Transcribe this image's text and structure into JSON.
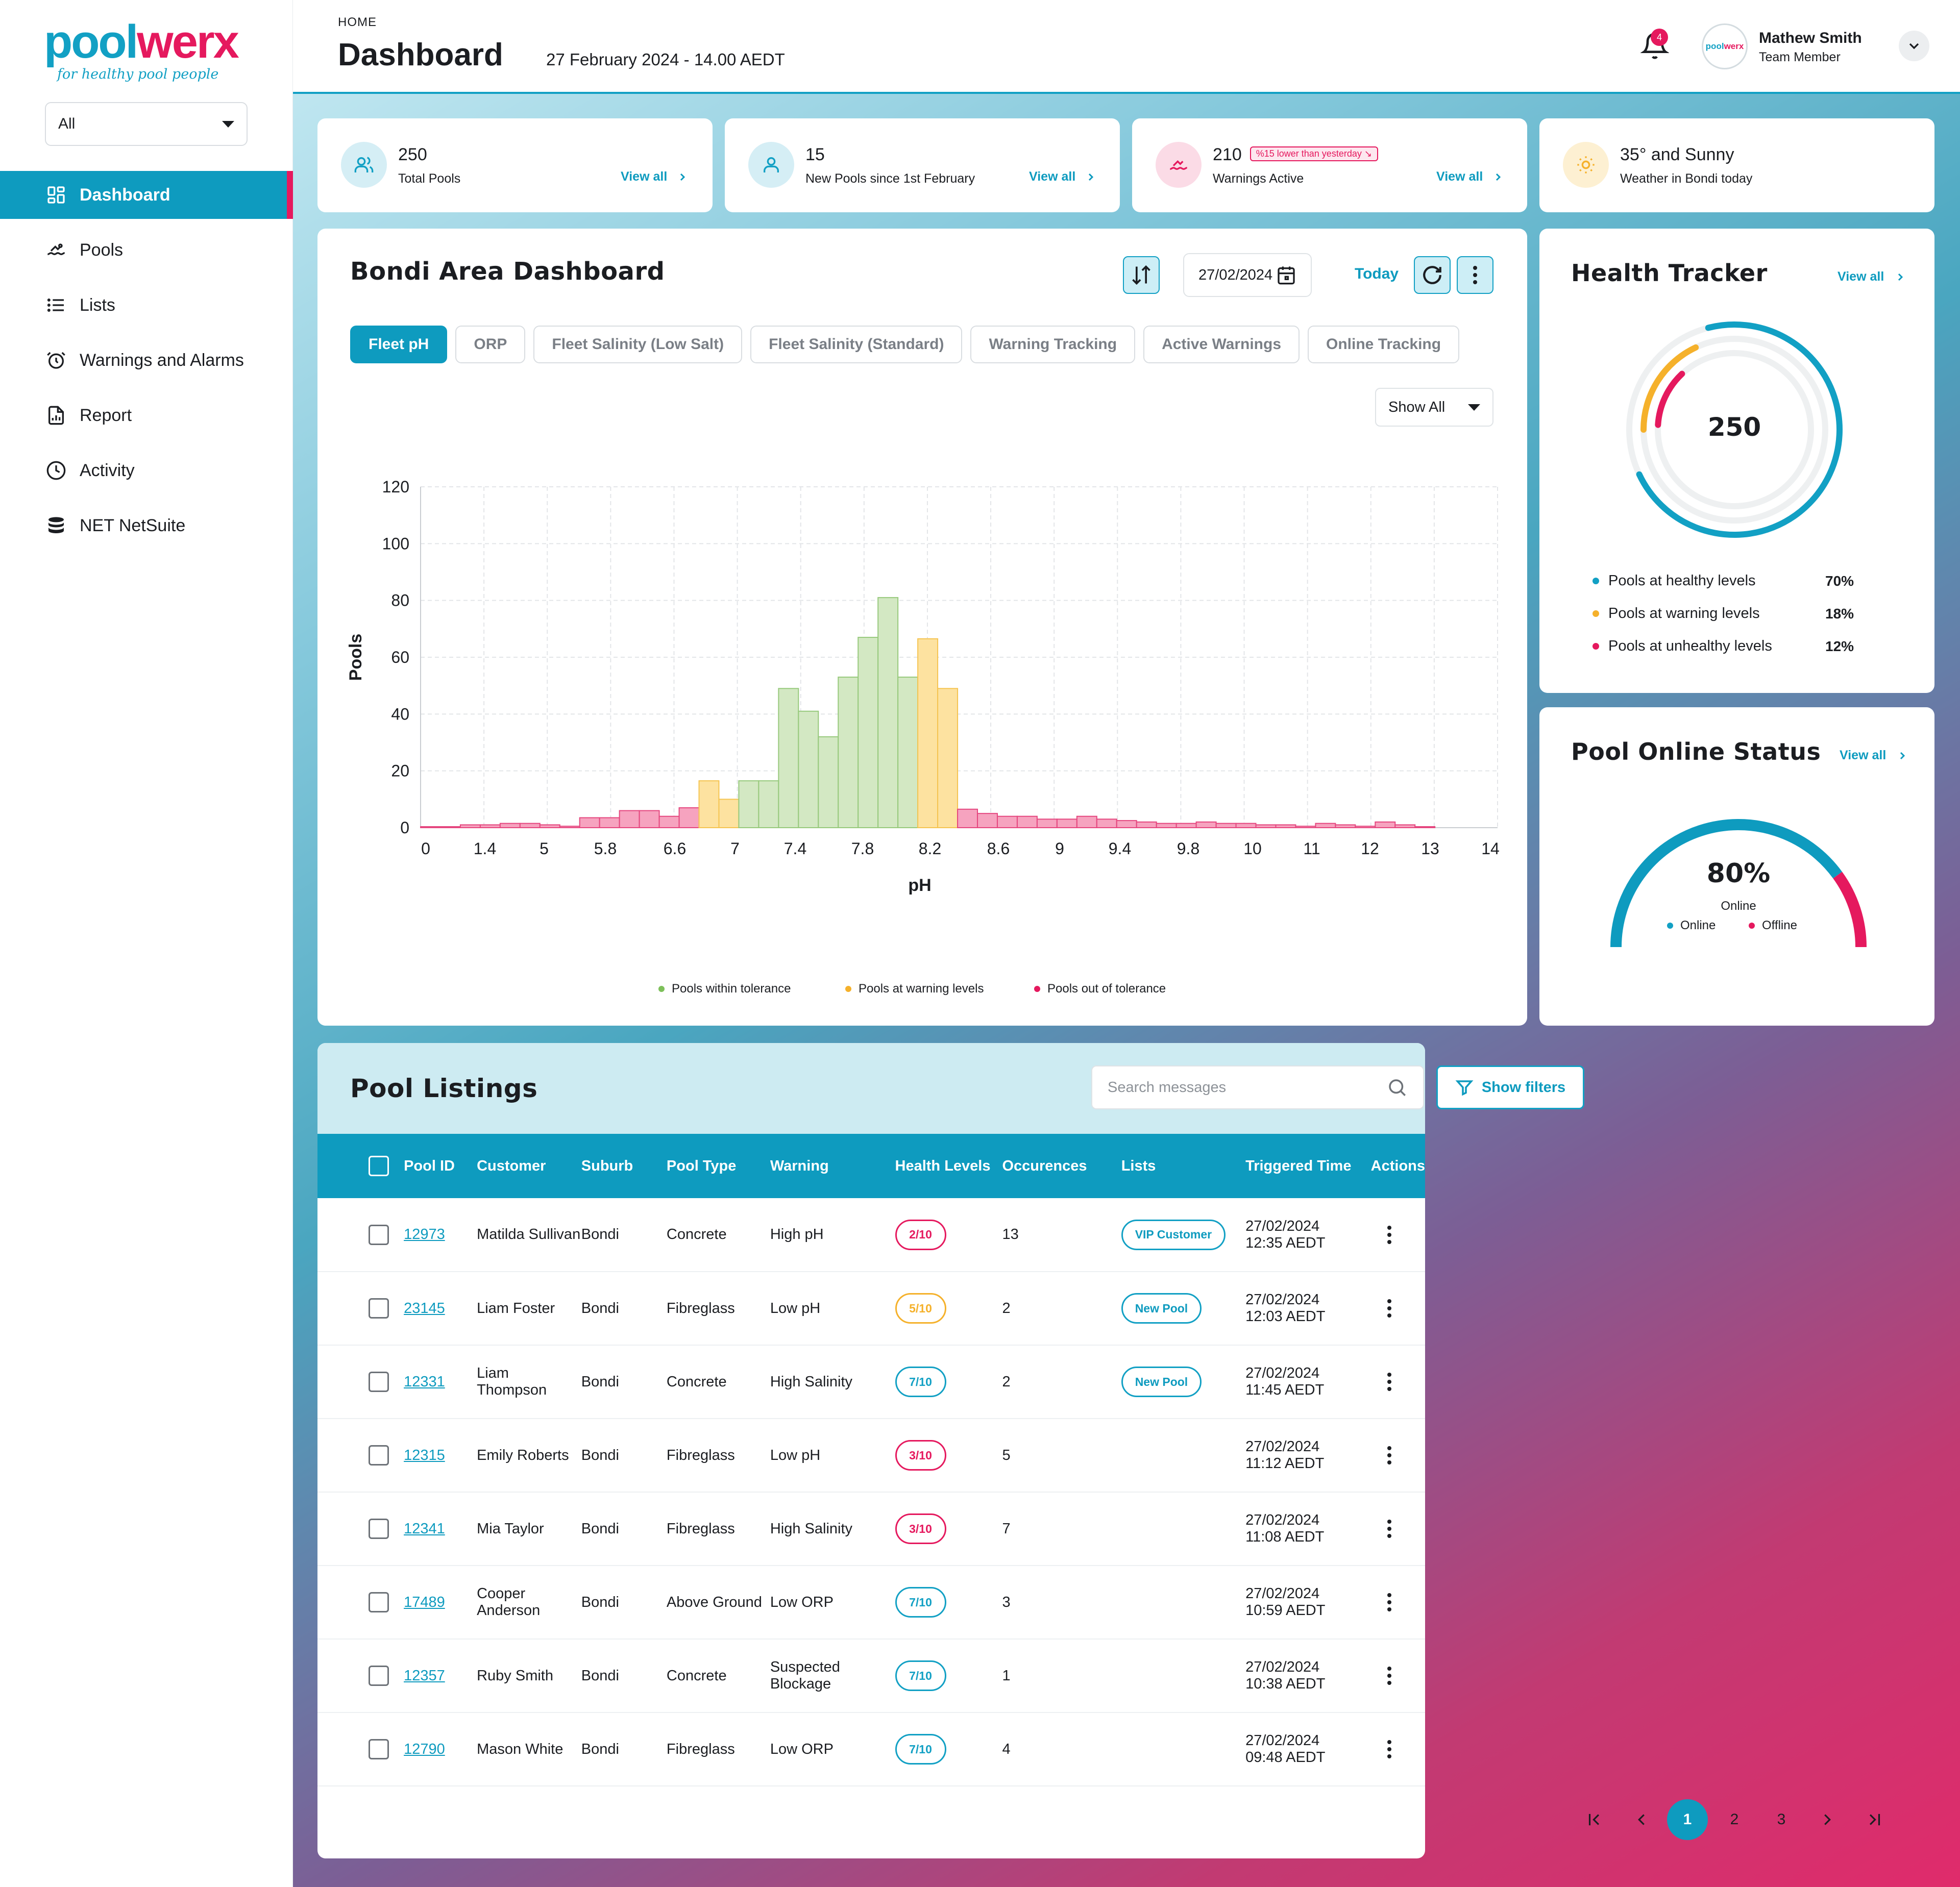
{
  "brand": {
    "logo_part1": "pool",
    "logo_part2": "werx",
    "tagline": "for healthy pool people",
    "accent": "#0e9bbf",
    "alert": "#e5195e"
  },
  "filter_select": {
    "value": "All"
  },
  "sidebar": {
    "items": [
      {
        "label": "Dashboard",
        "icon": "dashboard-icon"
      },
      {
        "label": "Pools",
        "icon": "swimmer-icon"
      },
      {
        "label": "Lists",
        "icon": "list-icon"
      },
      {
        "label": "Warnings and Alarms",
        "icon": "alarm-clock-icon"
      },
      {
        "label": "Report",
        "icon": "report-icon"
      },
      {
        "label": "Activity",
        "icon": "clock-icon"
      },
      {
        "label": "NET NetSuite",
        "icon": "database-icon"
      }
    ]
  },
  "header": {
    "breadcrumb": "HOME",
    "title": "Dashboard",
    "datetime": "27 February 2024 - 14.00 AEDT",
    "notifications": "4",
    "avatar_part1": "pool",
    "avatar_part2": "werx",
    "user_name": "Mathew Smith",
    "user_role": "Team Member"
  },
  "stats": [
    {
      "value": "250",
      "label": "Total Pools",
      "link": "View all"
    },
    {
      "value": "15",
      "label": "New Pools since 1st February",
      "link": "View all"
    },
    {
      "value": "210",
      "badge": "%15 lower than yesterday ↘",
      "label": "Warnings Active",
      "link": "View all"
    },
    {
      "value": "35° and Sunny",
      "label": "Weather in Bondi today"
    }
  ],
  "dashboard": {
    "title": "Bondi Area Dashboard",
    "date": "27/02/2024",
    "today": "Today",
    "tabs": [
      "Fleet pH",
      "ORP",
      "Fleet Salinity (Low Salt)",
      "Fleet Salinity (Standard)",
      "Warning Tracking",
      "Active Warnings",
      "Online Tracking"
    ],
    "show_select": "Show All"
  },
  "chart_data": {
    "type": "bar",
    "xlabel": "pH",
    "ylabel": "Pools",
    "ylim": [
      0,
      120
    ],
    "y_ticks": [
      0,
      20,
      40,
      60,
      80,
      100,
      120
    ],
    "x_tick_labels": [
      "0",
      "1.4",
      "5",
      "5.8",
      "6.6",
      "7",
      "7.4",
      "7.8",
      "8.2",
      "8.6",
      "9",
      "9.4",
      "9.8",
      "10",
      "11",
      "12",
      "13",
      "14"
    ],
    "bins": 51,
    "values": [
      0,
      0,
      1,
      1,
      1.5,
      1.5,
      1,
      0.5,
      3.5,
      3.5,
      6,
      6,
      4,
      7,
      16.5,
      10,
      16.5,
      16.5,
      49,
      41,
      32,
      53,
      67,
      81,
      53,
      66.5,
      49,
      6.5,
      5,
      4,
      4,
      3,
      3,
      4,
      3,
      2.5,
      2,
      1.5,
      1.5,
      2,
      1.5,
      1.5,
      1,
      1,
      0.5,
      1.5,
      1,
      0.5,
      2,
      1,
      0
    ],
    "status": [
      "out",
      "out",
      "out",
      "out",
      "out",
      "out",
      "out",
      "out",
      "out",
      "out",
      "out",
      "out",
      "out",
      "out",
      "warn",
      "warn",
      "ok",
      "ok",
      "ok",
      "ok",
      "ok",
      "ok",
      "ok",
      "ok",
      "ok",
      "warn",
      "warn",
      "out",
      "out",
      "out",
      "out",
      "out",
      "out",
      "out",
      "out",
      "out",
      "out",
      "out",
      "out",
      "out",
      "out",
      "out",
      "out",
      "out",
      "out",
      "out",
      "out",
      "out",
      "out",
      "out",
      "out"
    ],
    "colors": {
      "ok": "#d3e8c3",
      "ok_stroke": "#97c97c",
      "warn": "#fde2a0",
      "warn_stroke": "#f5c451",
      "out": "#f6a3bf",
      "out_stroke": "#e5477f"
    },
    "legend": [
      "Pools within tolerance",
      "Pools at warning levels",
      "Pools out of tolerance"
    ],
    "legend_colors": [
      "#7dc05a",
      "#f5b12b",
      "#e5195e"
    ],
    "grid": true,
    "legend_position": "bottom-center"
  },
  "health": {
    "title": "Health Tracker",
    "link": "View all",
    "total": "250",
    "rows": [
      {
        "label": "Pools at healthy levels",
        "pct": "70%",
        "color": "#12a0c4"
      },
      {
        "label": "Pools at warning levels",
        "pct": "18%",
        "color": "#f5b12b"
      },
      {
        "label": "Pools at unhealthy levels",
        "pct": "12%",
        "color": "#e5195e"
      }
    ],
    "fractions": [
      0.7,
      0.18,
      0.12
    ]
  },
  "online": {
    "title": "Pool Online Status",
    "link": "View all",
    "value": "80%",
    "sub": "Online",
    "legend_online": "Online",
    "legend_offline": "Offline",
    "fraction": 0.8
  },
  "listings": {
    "title": "Pool Listings",
    "search_placeholder": "Search messages",
    "filters": "Show filters",
    "columns": [
      "Pool ID",
      "Customer",
      "Suburb",
      "Pool Type",
      "Warning",
      "Health Levels",
      "Occurences",
      "Lists",
      "Triggered Time",
      "Actions"
    ],
    "rows": [
      {
        "id": "12973",
        "customer": "Matilda Sullivan",
        "suburb": "Bondi",
        "type": "Concrete",
        "warning": "High pH",
        "health": "2/10",
        "hc": "#e5195e",
        "occ": "13",
        "list": "VIP Customer",
        "date": "27/02/2024",
        "time": "12:35 AEDT"
      },
      {
        "id": "23145",
        "customer": "Liam Foster",
        "suburb": "Bondi",
        "type": "Fibreglass",
        "warning": "Low pH",
        "health": "5/10",
        "hc": "#f5b12b",
        "occ": "2",
        "list": "New Pool",
        "date": "27/02/2024",
        "time": "12:03 AEDT"
      },
      {
        "id": "12331",
        "customer": "Liam Thompson",
        "suburb": "Bondi",
        "type": "Concrete",
        "warning": "High Salinity",
        "health": "7/10",
        "hc": "#12a0c4",
        "occ": "2",
        "list": "New Pool",
        "date": "27/02/2024",
        "time": "11:45 AEDT"
      },
      {
        "id": "12315",
        "customer": "Emily Roberts",
        "suburb": "Bondi",
        "type": "Fibreglass",
        "warning": "Low pH",
        "health": "3/10",
        "hc": "#e5195e",
        "occ": "5",
        "list": "",
        "date": "27/02/2024",
        "time": "11:12 AEDT"
      },
      {
        "id": "12341",
        "customer": "Mia Taylor",
        "suburb": "Bondi",
        "type": "Fibreglass",
        "warning": "High Salinity",
        "health": "3/10",
        "hc": "#e5195e",
        "occ": "7",
        "list": "",
        "date": "27/02/2024",
        "time": "11:08 AEDT"
      },
      {
        "id": "17489",
        "customer": "Cooper Anderson",
        "suburb": "Bondi",
        "type": "Above Ground",
        "warning": "Low ORP",
        "health": "7/10",
        "hc": "#12a0c4",
        "occ": "3",
        "list": "",
        "date": "27/02/2024",
        "time": "10:59 AEDT"
      },
      {
        "id": "12357",
        "customer": "Ruby Smith",
        "suburb": "Bondi",
        "type": "Concrete",
        "warning": "Suspected Blockage",
        "health": "7/10",
        "hc": "#12a0c4",
        "occ": "1",
        "list": "",
        "date": "27/02/2024",
        "time": "10:38 AEDT"
      },
      {
        "id": "12790",
        "customer": "Mason White",
        "suburb": "Bondi",
        "type": "Fibreglass",
        "warning": "Low ORP",
        "health": "7/10",
        "hc": "#12a0c4",
        "occ": "4",
        "list": "",
        "date": "27/02/2024",
        "time": "09:48 AEDT"
      }
    ],
    "pages": [
      "1",
      "2",
      "3"
    ]
  }
}
